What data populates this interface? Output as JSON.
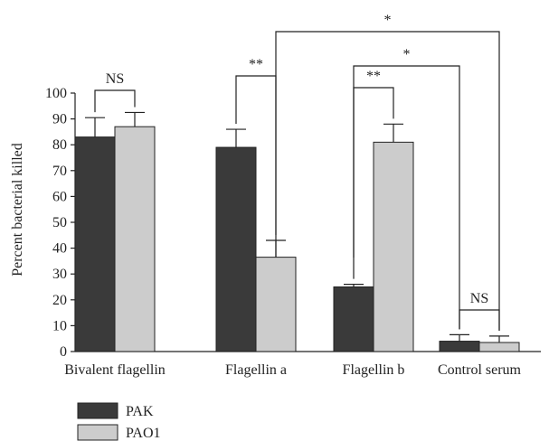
{
  "chart_data": {
    "type": "bar",
    "ylabel": "Percent bacterial killed",
    "ylim": [
      0,
      100
    ],
    "yticks": [
      0,
      10,
      20,
      30,
      40,
      50,
      60,
      70,
      80,
      90,
      100
    ],
    "categories": [
      "Bivalent flagellin",
      "Flagellin a",
      "Flagellin b",
      "Control serum"
    ],
    "series": [
      {
        "name": "PAK",
        "color": "#3a3a3a",
        "values": [
          83,
          79,
          25,
          4
        ],
        "errors": [
          7.5,
          7,
          1,
          2.5
        ]
      },
      {
        "name": "PAO1",
        "color": "#cccccc",
        "values": [
          87,
          36.5,
          81,
          3.5
        ],
        "errors": [
          5.5,
          6.5,
          7,
          2.5
        ]
      }
    ],
    "legend_position": "bottom-left",
    "significance": [
      {
        "label": "NS",
        "from": "Bivalent flagellin/PAK",
        "to": "Bivalent flagellin/PAO1"
      },
      {
        "label": "**",
        "from": "Flagellin a/PAK",
        "to": "Flagellin a/PAO1"
      },
      {
        "label": "*",
        "from": "Flagellin a/PAO1",
        "to": "Control serum/PAO1"
      },
      {
        "label": "*",
        "from": "Flagellin b/PAK",
        "to": "Control serum/PAK"
      },
      {
        "label": "**",
        "from": "Flagellin b/PAK",
        "to": "Flagellin b/PAO1"
      },
      {
        "label": "NS",
        "from": "Control serum/PAK",
        "to": "Control serum/PAO1"
      }
    ]
  }
}
